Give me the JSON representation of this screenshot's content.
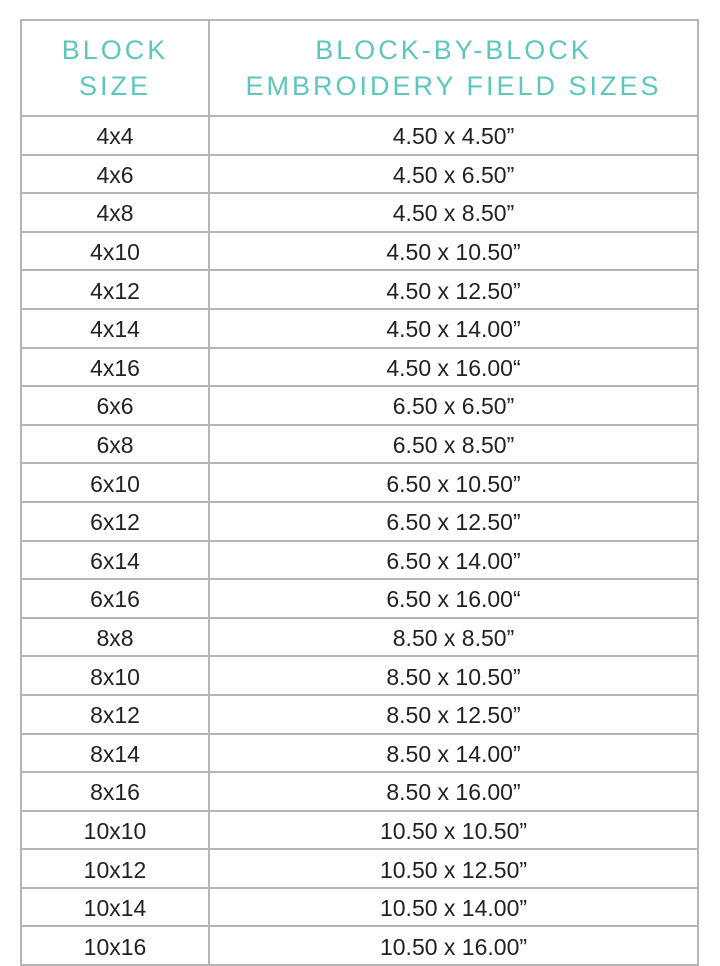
{
  "header": {
    "col1": [
      "BLOCK",
      "SIZE"
    ],
    "col2": [
      "BLOCK-BY-BLOCK",
      "EMBROIDERY FIELD SIZES"
    ]
  },
  "accent_color": "#5cc6bf",
  "rows": [
    {
      "block": "4x4",
      "field": "4.50 x 4.50”"
    },
    {
      "block": "4x6",
      "field": "4.50 x 6.50”"
    },
    {
      "block": "4x8",
      "field": "4.50 x 8.50”"
    },
    {
      "block": "4x10",
      "field": "4.50 x 10.50”"
    },
    {
      "block": "4x12",
      "field": "4.50 x 12.50”"
    },
    {
      "block": "4x14",
      "field": "4.50 x 14.00”"
    },
    {
      "block": "4x16",
      "field": "4.50 x 16.00“"
    },
    {
      "block": "6x6",
      "field": "6.50 x 6.50”"
    },
    {
      "block": "6x8",
      "field": "6.50 x 8.50”"
    },
    {
      "block": "6x10",
      "field": "6.50 x 10.50”"
    },
    {
      "block": "6x12",
      "field": "6.50 x 12.50”"
    },
    {
      "block": "6x14",
      "field": "6.50 x 14.00”"
    },
    {
      "block": "6x16",
      "field": "6.50 x 16.00“"
    },
    {
      "block": "8x8",
      "field": "8.50 x 8.50”"
    },
    {
      "block": "8x10",
      "field": "8.50 x 10.50”"
    },
    {
      "block": "8x12",
      "field": "8.50 x 12.50”"
    },
    {
      "block": "8x14",
      "field": "8.50 x 14.00”"
    },
    {
      "block": "8x16",
      "field": "8.50 x 16.00”"
    },
    {
      "block": "10x10",
      "field": "10.50 x 10.50”"
    },
    {
      "block": "10x12",
      "field": "10.50 x 12.50”"
    },
    {
      "block": "10x14",
      "field": "10.50 x 14.00”"
    },
    {
      "block": "10x16",
      "field": "10.50 x 16.00”"
    }
  ]
}
